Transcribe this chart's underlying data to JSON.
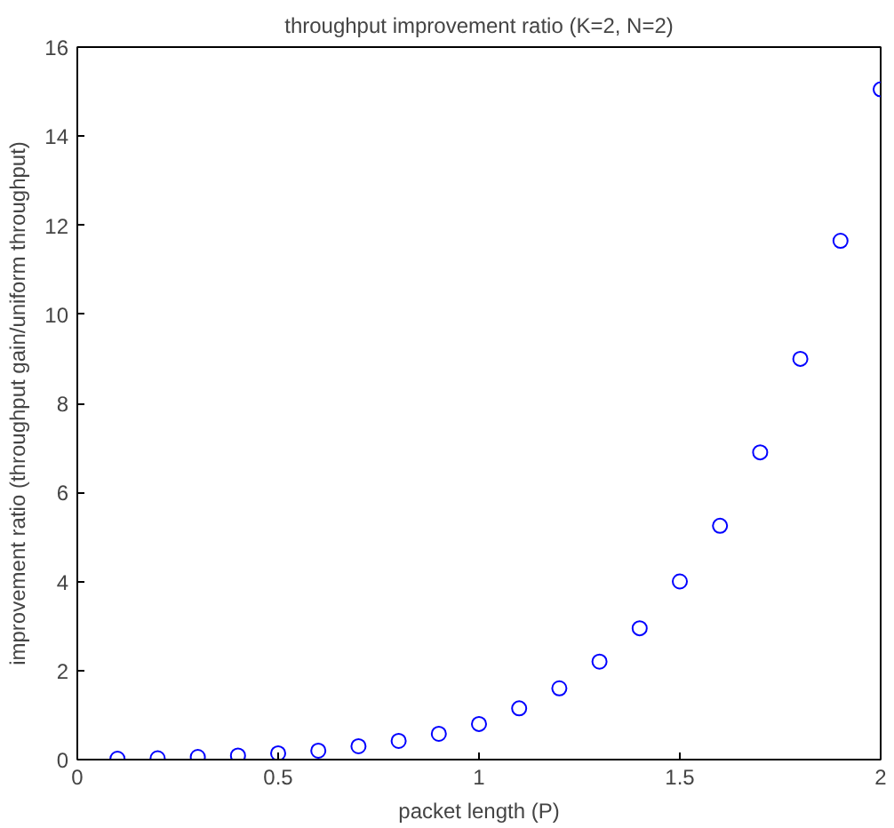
{
  "chart_data": {
    "type": "scatter",
    "title": "throughput improvement ratio (K=2, N=2)",
    "xlabel": "packet length (P)",
    "ylabel": "improvement ratio (throughput gain/uniform throughput)",
    "x": [
      0.1,
      0.2,
      0.3,
      0.4,
      0.5,
      0.6,
      0.7,
      0.8,
      0.9,
      1.0,
      1.1,
      1.2,
      1.3,
      1.4,
      1.5,
      1.6,
      1.7,
      1.8,
      1.9,
      2.0
    ],
    "series": [
      {
        "color": "#0000ff",
        "values": [
          0.02,
          0.03,
          0.06,
          0.09,
          0.14,
          0.2,
          0.3,
          0.42,
          0.58,
          0.8,
          1.15,
          1.6,
          2.2,
          2.95,
          4.0,
          5.25,
          6.9,
          9.0,
          11.65,
          15.05
        ]
      }
    ],
    "marker": "circle",
    "grid": false,
    "xlim": [
      0,
      2
    ],
    "xticks": [
      0,
      0.5,
      1,
      1.5,
      2
    ],
    "ylim": [
      0,
      16
    ],
    "yticks": [
      0,
      2,
      4,
      6,
      8,
      10,
      12,
      14,
      16
    ]
  }
}
